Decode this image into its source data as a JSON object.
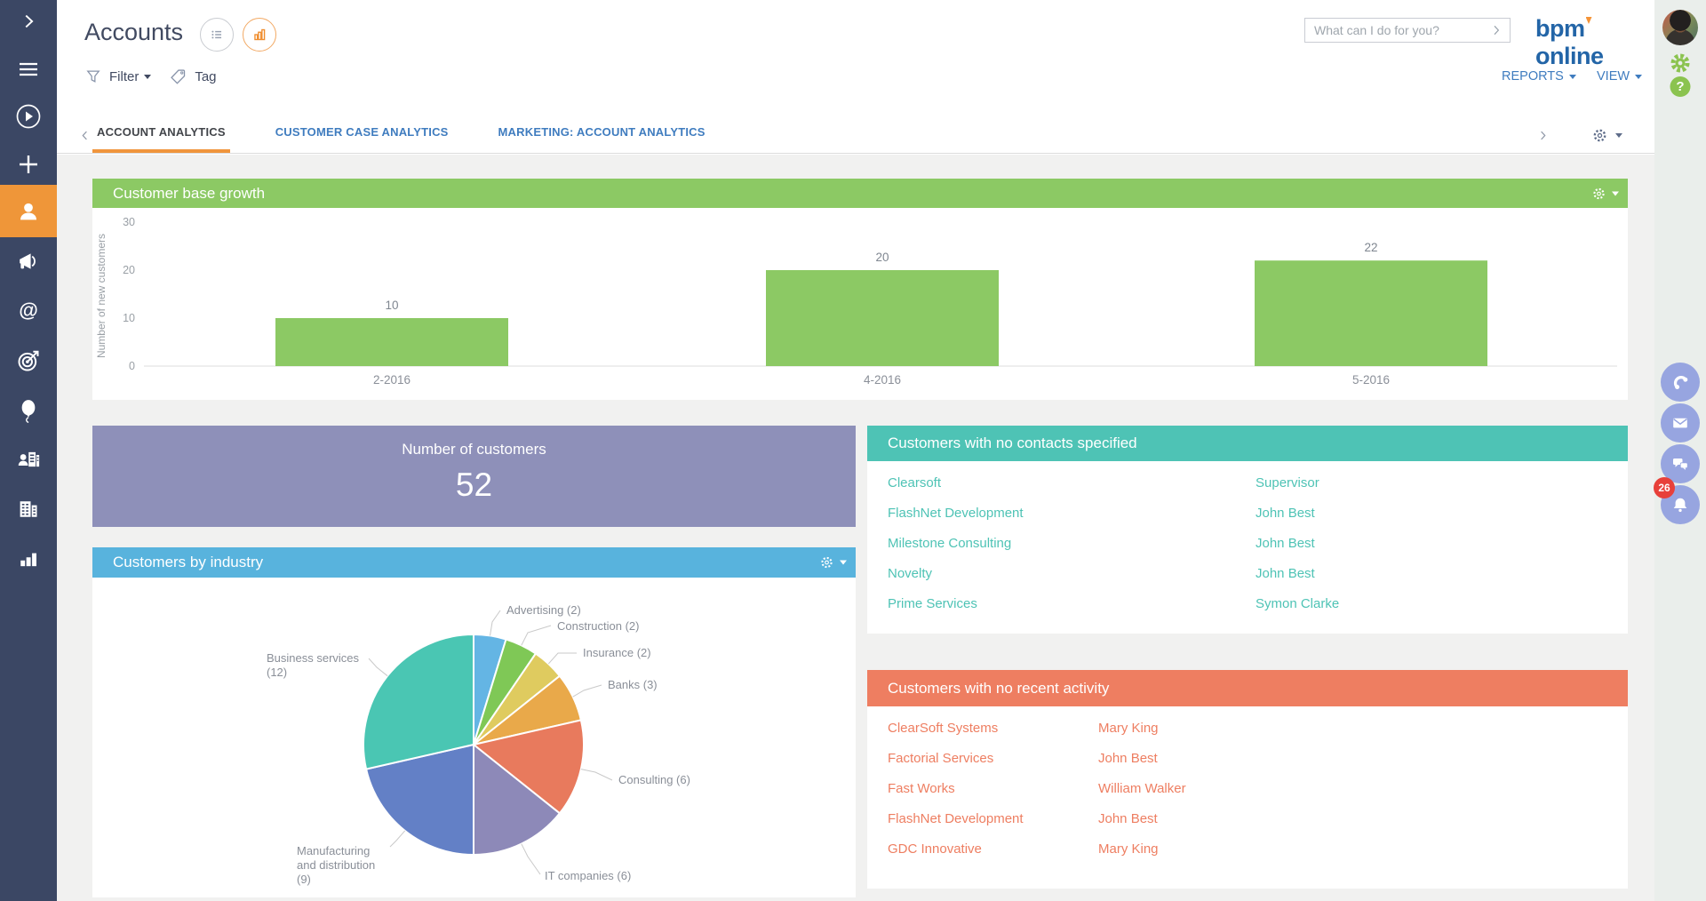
{
  "header": {
    "title": "Accounts",
    "search_placeholder": "What can I do for you?",
    "logo_prefix": "bpm",
    "logo_suffix": "online",
    "reports_label": "REPORTS",
    "view_label": "VIEW",
    "filter_label": "Filter",
    "tag_label": "Tag"
  },
  "tabs": {
    "items": [
      {
        "label": "ACCOUNT ANALYTICS",
        "active": true
      },
      {
        "label": "CUSTOMER CASE ANALYTICS",
        "active": false
      },
      {
        "label": "MARKETING: ACCOUNT ANALYTICS",
        "active": false
      }
    ]
  },
  "sidebar": {
    "icons": [
      "expand-chevron",
      "menu",
      "run-process",
      "add-record",
      "accounts-active",
      "marketing",
      "email",
      "targets",
      "events",
      "contacts",
      "companies",
      "dashboards"
    ]
  },
  "cards": {
    "number_of_customers": {
      "title": "Number of customers",
      "value": "52"
    },
    "no_contacts": {
      "title": "Customers with no contacts specified",
      "rows": [
        {
          "company": "Clearsoft",
          "contact": "Supervisor"
        },
        {
          "company": "FlashNet Development",
          "contact": "John Best"
        },
        {
          "company": "Milestone Consulting",
          "contact": "John Best"
        },
        {
          "company": "Novelty",
          "contact": "John Best"
        },
        {
          "company": "Prime Services",
          "contact": "Symon Clarke"
        }
      ]
    },
    "no_activity": {
      "title": "Customers with no recent activity",
      "rows": [
        {
          "company": "ClearSoft Systems",
          "contact": "Mary King"
        },
        {
          "company": "Factorial Services",
          "contact": "John Best"
        },
        {
          "company": "Fast Works",
          "contact": "William Walker"
        },
        {
          "company": "FlashNet Development",
          "contact": "John Best"
        },
        {
          "company": "GDC Innovative",
          "contact": "Mary King"
        }
      ]
    }
  },
  "chart_data": [
    {
      "type": "bar",
      "title": "Customer base growth",
      "categories": [
        "2-2016",
        "4-2016",
        "5-2016"
      ],
      "values": [
        10,
        20,
        22
      ],
      "xlabel": "",
      "ylabel": "Number of new customers",
      "ylim": [
        0,
        30
      ],
      "yticks": [
        0,
        10,
        20,
        30
      ],
      "grid": false,
      "bar_color": "#8CC964"
    },
    {
      "type": "pie",
      "title": "Customers by industry",
      "labels": [
        "Advertising (2)",
        "Construction (2)",
        "Insurance (2)",
        "Banks (3)",
        "Consulting (6)",
        "IT companies (6)",
        "Manufacturing and distribution (9)",
        "Business services (12)"
      ],
      "values": [
        2,
        2,
        2,
        3,
        6,
        6,
        9,
        12
      ],
      "colors": [
        "#64B5E4",
        "#7FC856",
        "#DFCB5F",
        "#E9A94A",
        "#E87A5D",
        "#8D89B8",
        "#6380C6",
        "#4AC6B3"
      ],
      "start_angle": "12-oclock",
      "direction": "clockwise"
    }
  ],
  "rail": {
    "notification_count": "26"
  },
  "colors": {
    "sidebar_bg": "#3B4764",
    "sidebar_active": "#EF9639",
    "green": "#8CC964",
    "purple": "#8E90B9",
    "blue": "#58B3DD",
    "teal": "#4EC3B5",
    "orange": "#EE7E61",
    "link_blue": "#3F7CBF",
    "logo_blue": "#2365A7",
    "rail_icon": "#97A5E0",
    "rail_green": "#8BC34F",
    "badge_red": "#E8403A",
    "content_bg": "#F1F1F0"
  }
}
